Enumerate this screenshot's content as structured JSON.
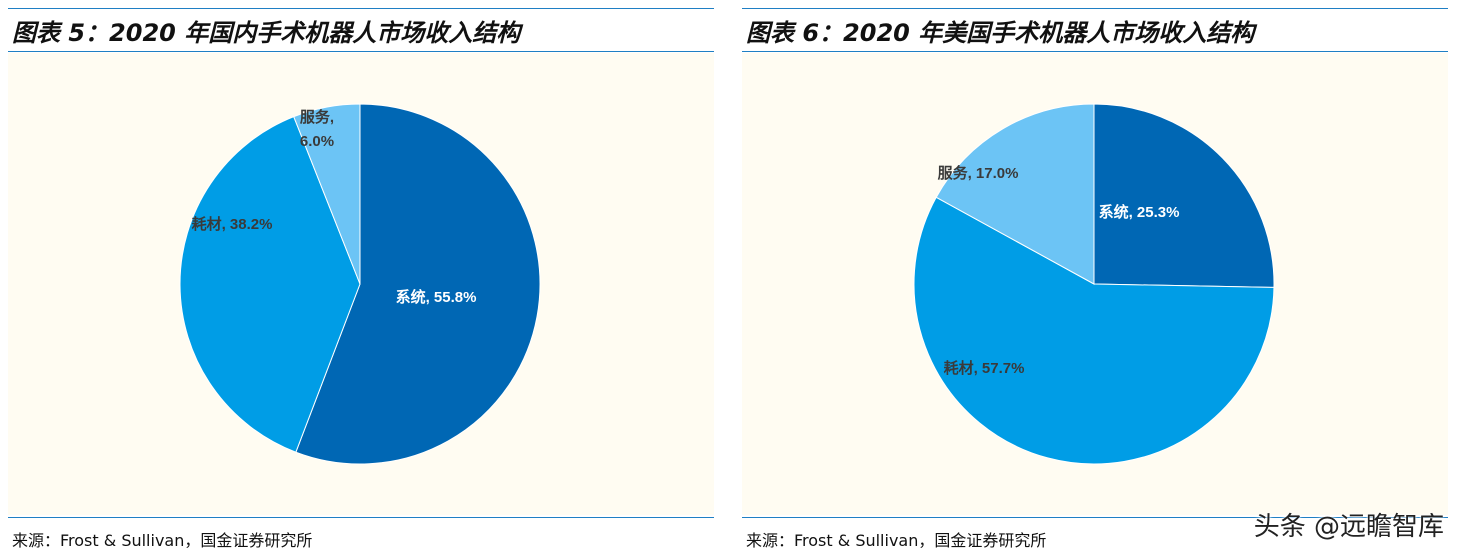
{
  "panels": [
    {
      "title": "图表 5：2020 年国内手术机器人市场收入结构",
      "source": "来源：Frost & Sullivan，国金证券研究所",
      "chart_data": {
        "type": "pie",
        "title": "图表 5：2020 年国内手术机器人市场收入结构",
        "slices": [
          {
            "name": "系统",
            "value": 55.8,
            "label": "系统, 55.8%",
            "color": "#0067b4",
            "label_color": "#ffffff"
          },
          {
            "name": "耗材",
            "value": 38.2,
            "label": "耗材, 38.2%",
            "color": "#009de6",
            "label_color": "#3a3a3a"
          },
          {
            "name": "服务",
            "value": 6.0,
            "label_lines": [
              "服务,",
              "6.0%"
            ],
            "color": "#6cc4f5",
            "label_color": "#3a3a3a"
          }
        ],
        "start": "12 o'clock",
        "direction": "clockwise"
      }
    },
    {
      "title": "图表 6：2020 年美国手术机器人市场收入结构",
      "source": "来源：Frost & Sullivan，国金证券研究所",
      "chart_data": {
        "type": "pie",
        "title": "图表 6：2020 年美国手术机器人市场收入结构",
        "slices": [
          {
            "name": "系统",
            "value": 25.3,
            "label": "系统, 25.3%",
            "color": "#0067b4",
            "label_color": "#ffffff"
          },
          {
            "name": "耗材",
            "value": 57.7,
            "label": "耗材, 57.7%",
            "color": "#009de6",
            "label_color": "#3a3a3a"
          },
          {
            "name": "服务",
            "value": 17.0,
            "label": "服务, 17.0%",
            "color": "#6cc4f5",
            "label_color": "#3a3a3a"
          }
        ],
        "start": "12 o'clock",
        "direction": "clockwise"
      }
    }
  ],
  "watermark": "头条 @远瞻智库"
}
